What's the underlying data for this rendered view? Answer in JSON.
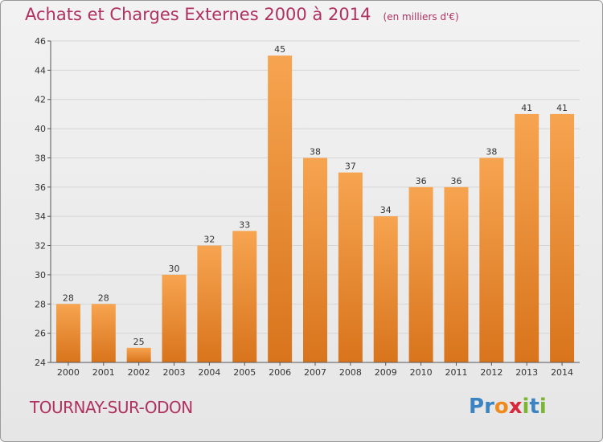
{
  "title": "Achats et Charges Externes 2000 à 2014",
  "subtitle": "(en milliers d'€)",
  "commune": "TOURNAY-SUR-ODON",
  "logo": {
    "letters": [
      "P",
      "r",
      "o",
      "x",
      "i",
      "t",
      "i"
    ],
    "colors": [
      "#3a84c4",
      "#3a84c4",
      "#f08a1c",
      "#d8283c",
      "#7cb434",
      "#3a84c4",
      "#7cb434"
    ]
  },
  "colors": {
    "bar_top": "#f7a450",
    "bar_bottom": "#d8741c",
    "title": "#b03060",
    "grid": "#d6d6d6"
  },
  "chart_data": {
    "type": "bar",
    "categories": [
      "2000",
      "2001",
      "2002",
      "2003",
      "2004",
      "2005",
      "2006",
      "2007",
      "2008",
      "2009",
      "2010",
      "2011",
      "2012",
      "2013",
      "2014"
    ],
    "values": [
      28,
      28,
      25,
      30,
      32,
      33,
      45,
      38,
      37,
      34,
      36,
      36,
      38,
      41,
      41
    ],
    "ylim": [
      24,
      46
    ],
    "yticks": [
      24,
      26,
      28,
      30,
      32,
      34,
      36,
      38,
      40,
      42,
      44,
      46
    ],
    "grid": true
  }
}
